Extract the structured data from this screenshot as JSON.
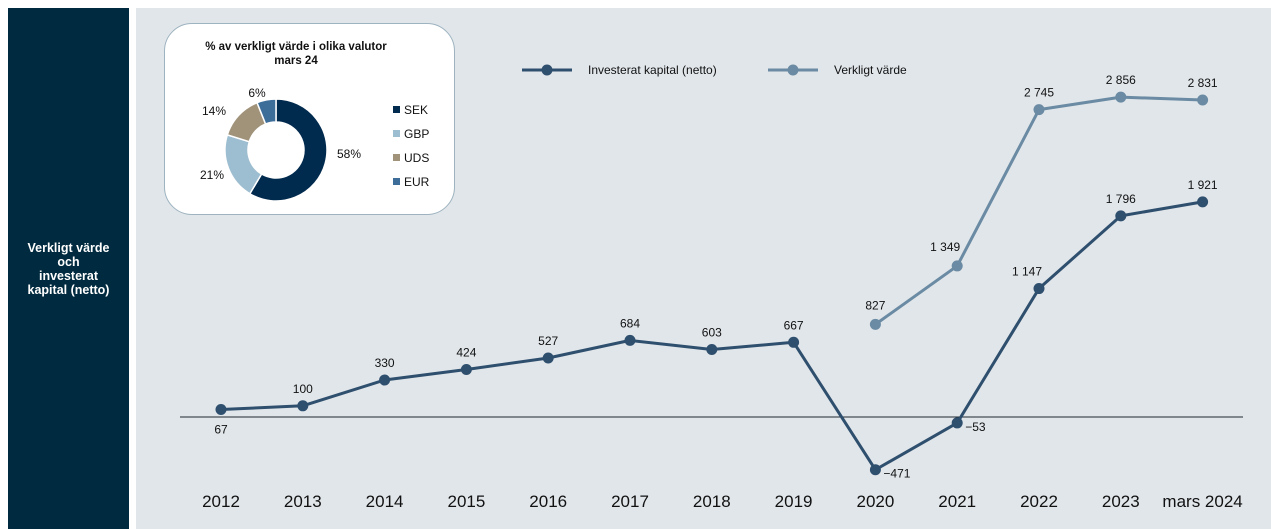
{
  "sidebar": {
    "label": "Verkligt värde\noch\ninvesterat\nkapital (netto)"
  },
  "chart_data": [
    {
      "type": "line",
      "categories": [
        "2012",
        "2013",
        "2014",
        "2015",
        "2016",
        "2017",
        "2018",
        "2019",
        "2020",
        "2021",
        "2022",
        "2023",
        "mars 2024"
      ],
      "series": [
        {
          "name": "Investerat kapital (netto)",
          "color": "#2f4f6e",
          "values": [
            67,
            100,
            330,
            424,
            527,
            684,
            603,
            667,
            -471,
            -53,
            1147,
            1796,
            1921
          ],
          "labels": [
            "67",
            "100",
            "330",
            "424",
            "527",
            "684",
            "603",
            "667",
            "−471",
            "−53",
            "1 147",
            "1 796",
            "1 921"
          ]
        },
        {
          "name": "Verkligt värde",
          "color": "#6a8ba3",
          "values": [
            null,
            null,
            null,
            null,
            null,
            null,
            null,
            null,
            827,
            1349,
            2745,
            2856,
            2831
          ],
          "labels": [
            "",
            "",
            "",
            "",
            "",
            "",
            "",
            "",
            "827",
            "1 349",
            "2 745",
            "2 856",
            "2 831"
          ]
        }
      ],
      "ylim": [
        -500,
        3000
      ],
      "legend_position": "top",
      "grid": false
    },
    {
      "type": "pie",
      "title": "% av verkligt värde i olika valutor\nmars 24",
      "slices": [
        {
          "label": "SEK",
          "value": 58,
          "text": "58%",
          "color": "#002a4e"
        },
        {
          "label": "GBP",
          "value": 21,
          "text": "21%",
          "color": "#9dbdd0"
        },
        {
          "label": "UDS",
          "value": 14,
          "text": "14%",
          "color": "#a0937a"
        },
        {
          "label": "EUR",
          "value": 6,
          "text": "6%",
          "color": "#3d6e9a"
        }
      ]
    }
  ]
}
